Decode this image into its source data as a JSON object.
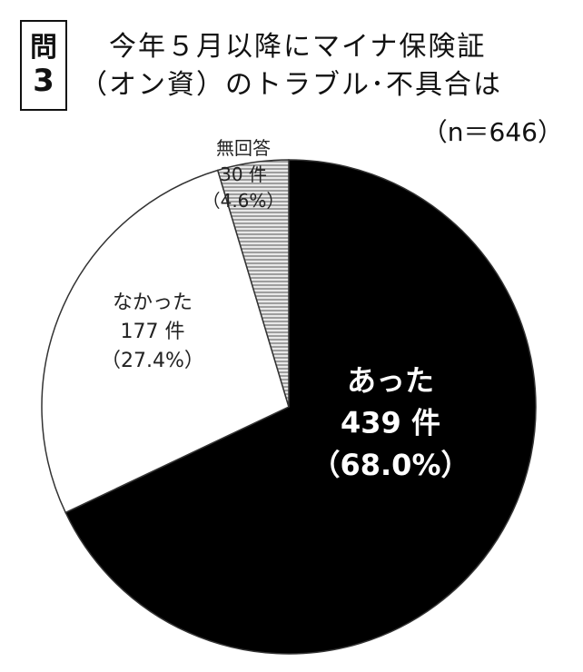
{
  "question": {
    "mark": "問",
    "number": "3"
  },
  "title_line1": "今年５月以降にマイナ保険証",
  "title_line2": "（オン資）のトラブル･不具合は",
  "sample_size": "（n＝646）",
  "chart_data": {
    "type": "pie",
    "title": "今年５月以降にマイナ保険証（オン資）のトラブル･不具合は",
    "total": 646,
    "slices": [
      {
        "name": "あった",
        "count_label": "439 件",
        "pct_label": "（68.0%）",
        "value": 439,
        "percent": 68.0,
        "fill": "#000000"
      },
      {
        "name": "なかった",
        "count_label": "177 件",
        "pct_label": "（27.4%）",
        "value": 177,
        "percent": 27.4,
        "fill": "#ffffff"
      },
      {
        "name": "無回答",
        "count_label": "30 件",
        "pct_label": "（4.6%）",
        "value": 30,
        "percent": 4.6,
        "fill": "#c8c8c8"
      }
    ]
  }
}
